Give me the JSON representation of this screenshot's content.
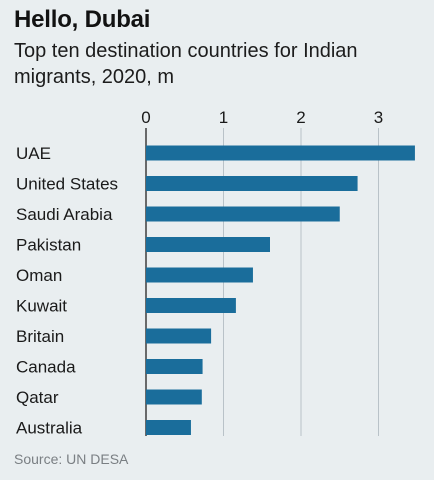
{
  "chart_data": {
    "type": "bar",
    "orientation": "horizontal",
    "title": "Hello, Dubai",
    "subtitle": "Top ten destination countries for Indian migrants, 2020, m",
    "categories": [
      "UAE",
      "United States",
      "Saudi Arabia",
      "Pakistan",
      "Oman",
      "Kuwait",
      "Britain",
      "Canada",
      "Qatar",
      "Australia"
    ],
    "values": [
      3.47,
      2.73,
      2.5,
      1.6,
      1.38,
      1.16,
      0.84,
      0.73,
      0.72,
      0.58
    ],
    "xlim": [
      0,
      3.5
    ],
    "xticks": [
      0,
      1,
      2,
      3
    ],
    "grid": true,
    "bar_color": "#1a6d9b",
    "source": "Source: UN DESA"
  }
}
